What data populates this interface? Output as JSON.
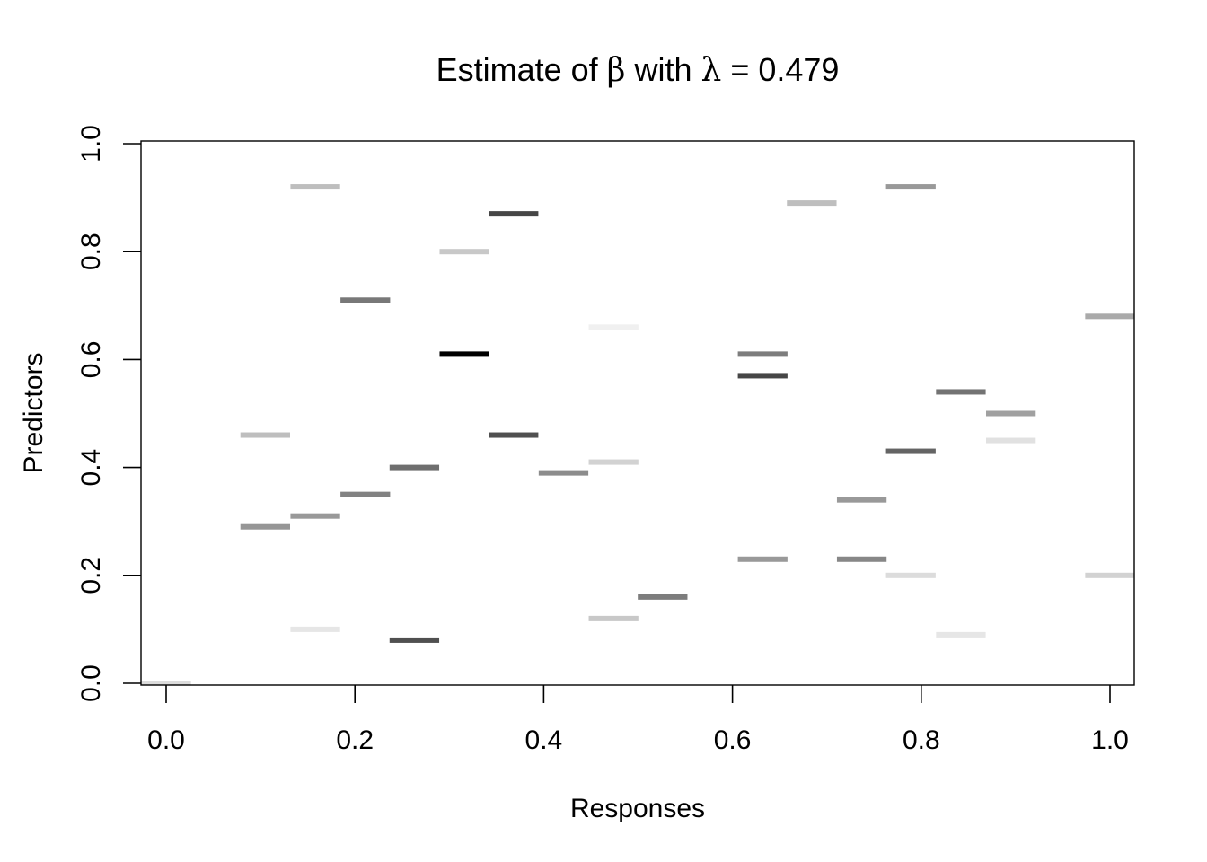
{
  "chart_data": {
    "type": "heatmap",
    "title": {
      "prefix": "Estimate of ",
      "beta": "β",
      "middle": " with ",
      "lambda": "λ",
      "suffix": " = 0.479"
    },
    "xlabel": "Responses",
    "ylabel": "Predictors",
    "xlim": [
      0.0,
      1.0
    ],
    "ylim": [
      0.0,
      1.0
    ],
    "x_ticks": [
      "0.0",
      "0.2",
      "0.4",
      "0.6",
      "0.8",
      "1.0"
    ],
    "y_ticks": [
      "0.0",
      "0.2",
      "0.4",
      "0.6",
      "0.8",
      "1.0"
    ],
    "grid": false,
    "legend": "none",
    "x_step": 0.0526,
    "y_step": 0.01,
    "cells": [
      {
        "x": 0.0,
        "y": 0.0,
        "color": "#dcdcdc"
      },
      {
        "x": 0.105,
        "y": 0.29,
        "color": "#969696"
      },
      {
        "x": 0.105,
        "y": 0.46,
        "color": "#bebebe"
      },
      {
        "x": 0.158,
        "y": 0.92,
        "color": "#bebebe"
      },
      {
        "x": 0.158,
        "y": 0.31,
        "color": "#999999"
      },
      {
        "x": 0.158,
        "y": 0.1,
        "color": "#e6e6e6"
      },
      {
        "x": 0.211,
        "y": 0.71,
        "color": "#787878"
      },
      {
        "x": 0.211,
        "y": 0.35,
        "color": "#828282"
      },
      {
        "x": 0.263,
        "y": 0.4,
        "color": "#6e6e6e"
      },
      {
        "x": 0.263,
        "y": 0.08,
        "color": "#505050"
      },
      {
        "x": 0.316,
        "y": 0.8,
        "color": "#c8c8c8"
      },
      {
        "x": 0.316,
        "y": 0.61,
        "color": "#000000"
      },
      {
        "x": 0.368,
        "y": 0.87,
        "color": "#464646"
      },
      {
        "x": 0.368,
        "y": 0.46,
        "color": "#505050"
      },
      {
        "x": 0.421,
        "y": 0.39,
        "color": "#8c8c8c"
      },
      {
        "x": 0.474,
        "y": 0.66,
        "color": "#f0f0f0"
      },
      {
        "x": 0.474,
        "y": 0.41,
        "color": "#d2d2d2"
      },
      {
        "x": 0.474,
        "y": 0.12,
        "color": "#c8c8c8"
      },
      {
        "x": 0.526,
        "y": 0.16,
        "color": "#7d7d7d"
      },
      {
        "x": 0.632,
        "y": 0.61,
        "color": "#7d7d7d"
      },
      {
        "x": 0.632,
        "y": 0.57,
        "color": "#464646"
      },
      {
        "x": 0.632,
        "y": 0.23,
        "color": "#999999"
      },
      {
        "x": 0.684,
        "y": 0.89,
        "color": "#bebebe"
      },
      {
        "x": 0.737,
        "y": 0.34,
        "color": "#999999"
      },
      {
        "x": 0.737,
        "y": 0.23,
        "color": "#878787"
      },
      {
        "x": 0.789,
        "y": 0.92,
        "color": "#999999"
      },
      {
        "x": 0.789,
        "y": 0.43,
        "color": "#646464"
      },
      {
        "x": 0.789,
        "y": 0.2,
        "color": "#dcdcdc"
      },
      {
        "x": 0.842,
        "y": 0.54,
        "color": "#737373"
      },
      {
        "x": 0.842,
        "y": 0.09,
        "color": "#e6e6e6"
      },
      {
        "x": 0.895,
        "y": 0.5,
        "color": "#a0a0a0"
      },
      {
        "x": 0.895,
        "y": 0.45,
        "color": "#e1e1e1"
      },
      {
        "x": 1.0,
        "y": 0.68,
        "color": "#aaaaaa"
      },
      {
        "x": 1.0,
        "y": 0.2,
        "color": "#d2d2d2"
      }
    ]
  }
}
